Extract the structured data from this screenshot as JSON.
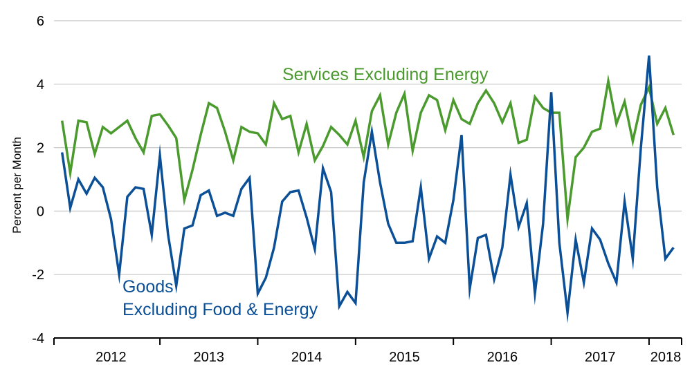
{
  "chart_data": {
    "type": "line",
    "ylabel": "Percent per Month",
    "xlabel": "",
    "ylim": [
      -4,
      6
    ],
    "yticks": [
      -4,
      -2,
      0,
      2,
      4,
      6
    ],
    "ytick_labels": [
      "-4",
      "-2",
      "0",
      "2",
      "4",
      "6"
    ],
    "xlim": [
      2011.917,
      2018.333
    ],
    "year_labels": [
      {
        "label": "2012",
        "center": 2012.5
      },
      {
        "label": "2013",
        "center": 2013.5
      },
      {
        "label": "2014",
        "center": 2014.5
      },
      {
        "label": "2015",
        "center": 2015.5
      },
      {
        "label": "2016",
        "center": 2016.5
      },
      {
        "label": "2017",
        "center": 2017.5
      },
      {
        "label": "2018",
        "center": 2018.17
      }
    ],
    "year_boundaries": [
      2013,
      2014,
      2015,
      2016,
      2017,
      2018
    ],
    "grid": true,
    "series": [
      {
        "name": "Services Excluding Energy",
        "label_lines": [
          "Services Excluding Energy"
        ],
        "color": "#4a9a2e",
        "start": 2012.0,
        "step": 0.0833333,
        "values": [
          2.85,
          1.2,
          2.85,
          2.8,
          1.8,
          2.65,
          2.45,
          2.65,
          2.85,
          2.3,
          1.85,
          3.0,
          3.05,
          2.7,
          2.3,
          0.35,
          1.3,
          2.4,
          3.4,
          3.25,
          2.5,
          1.6,
          2.65,
          2.5,
          2.45,
          2.1,
          3.4,
          2.9,
          3.0,
          1.85,
          2.75,
          1.6,
          2.05,
          2.65,
          2.4,
          2.1,
          2.85,
          1.7,
          3.15,
          3.65,
          2.1,
          3.1,
          3.7,
          1.9,
          3.1,
          3.65,
          3.5,
          2.55,
          3.5,
          2.9,
          2.75,
          3.4,
          3.8,
          3.4,
          2.8,
          3.4,
          2.15,
          2.25,
          3.6,
          3.25,
          3.1,
          3.1,
          -0.25,
          1.7,
          2.0,
          2.5,
          2.6,
          4.1,
          2.75,
          3.45,
          2.2,
          3.35,
          3.9,
          2.75,
          3.25,
          2.4
        ]
      },
      {
        "name": "Goods Excluding Food & Energy",
        "label_lines": [
          "Goods",
          "Excluding Food & Energy"
        ],
        "color": "#0b4f97",
        "start": 2012.0,
        "step": 0.0833333,
        "values": [
          1.85,
          0.1,
          1.0,
          0.55,
          1.05,
          0.75,
          -0.25,
          -2.0,
          0.45,
          0.75,
          0.7,
          -0.75,
          1.75,
          -0.75,
          -2.35,
          -0.55,
          -0.45,
          0.5,
          0.65,
          -0.15,
          -0.05,
          -0.15,
          0.7,
          1.05,
          -2.6,
          -2.1,
          -1.15,
          0.3,
          0.6,
          0.65,
          -0.2,
          -1.2,
          1.35,
          0.6,
          -3.0,
          -2.55,
          -2.9,
          0.9,
          2.5,
          0.9,
          -0.4,
          -1.0,
          -1.0,
          -0.95,
          0.75,
          -1.5,
          -0.8,
          -1.0,
          0.35,
          2.4,
          -2.45,
          -0.85,
          -0.75,
          -2.15,
          -1.15,
          1.15,
          -0.5,
          0.25,
          -2.6,
          -0.4,
          3.75,
          -1.0,
          -3.2,
          -0.9,
          -2.25,
          -0.55,
          -0.9,
          -1.65,
          -2.25,
          0.3,
          -1.5,
          2.0,
          4.9,
          0.75,
          -1.5,
          -1.15
        ]
      }
    ]
  }
}
